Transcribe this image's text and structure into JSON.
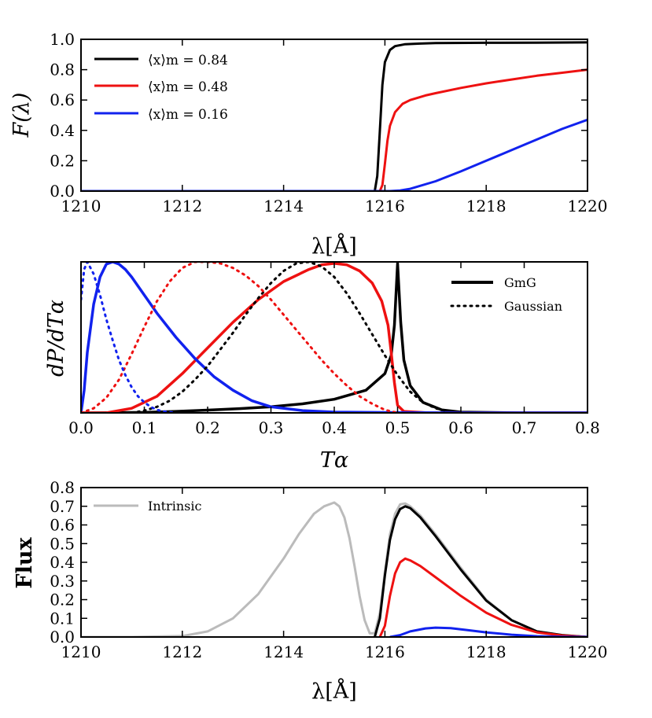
{
  "chart_data": [
    {
      "type": "line",
      "panel": "top",
      "xlabel": "λ[Å]",
      "ylabel": "F(λ)",
      "xlim": [
        1210,
        1220
      ],
      "ylim": [
        0.0,
        1.0
      ],
      "xticks": [
        "1210",
        "1212",
        "1214",
        "1216",
        "1218",
        "1220"
      ],
      "yticks": [
        "0.0",
        "0.2",
        "0.4",
        "0.6",
        "0.8",
        "1.0"
      ],
      "legend": "top-left",
      "series": [
        {
          "name": "⟨x⟩m = 0.84",
          "color": "#000000",
          "x": [
            1210,
            1215.8,
            1215.85,
            1215.9,
            1215.95,
            1216.0,
            1216.1,
            1216.2,
            1216.4,
            1216.7,
            1217.0,
            1218.0,
            1219.0,
            1220.0
          ],
          "y": [
            0.0,
            0.0,
            0.1,
            0.4,
            0.7,
            0.85,
            0.93,
            0.955,
            0.968,
            0.972,
            0.975,
            0.977,
            0.978,
            0.98
          ]
        },
        {
          "name": "⟨x⟩m = 0.48",
          "color": "#ee1111",
          "x": [
            1210,
            1215.9,
            1215.95,
            1216.0,
            1216.05,
            1216.1,
            1216.2,
            1216.35,
            1216.5,
            1216.8,
            1217.0,
            1217.5,
            1218.0,
            1218.5,
            1219.0,
            1219.5,
            1220.0
          ],
          "y": [
            0.0,
            0.0,
            0.04,
            0.18,
            0.33,
            0.43,
            0.52,
            0.575,
            0.6,
            0.63,
            0.645,
            0.68,
            0.71,
            0.735,
            0.76,
            0.78,
            0.8
          ]
        },
        {
          "name": "⟨x⟩m = 0.16",
          "color": "#1122ee",
          "x": [
            1210,
            1216.1,
            1216.3,
            1216.5,
            1217.0,
            1217.5,
            1218.0,
            1218.5,
            1219.0,
            1219.5,
            1220.0
          ],
          "y": [
            0.0,
            0.0,
            0.004,
            0.015,
            0.065,
            0.13,
            0.2,
            0.27,
            0.34,
            0.41,
            0.47
          ]
        }
      ]
    },
    {
      "type": "line",
      "panel": "middle",
      "xlabel": "Tα",
      "ylabel": "dP/dTα",
      "xlim": [
        0.0,
        0.8
      ],
      "ylim": [
        0.0,
        1.0
      ],
      "xticks": [
        "0.0",
        "0.1",
        "0.2",
        "0.3",
        "0.4",
        "0.5",
        "0.6",
        "0.7",
        "0.8"
      ],
      "yticks": [],
      "legend": "top-right",
      "legend_items": [
        {
          "label": "GmG",
          "style": "solid"
        },
        {
          "label": "Gaussian",
          "style": "dotted"
        }
      ],
      "series": [
        {
          "name": "GmG black",
          "style": "solid",
          "color": "#000000",
          "x": [
            0.0,
            0.1,
            0.15,
            0.2,
            0.25,
            0.3,
            0.35,
            0.4,
            0.45,
            0.48,
            0.49,
            0.495,
            0.5,
            0.505,
            0.51,
            0.52,
            0.54,
            0.57,
            0.6,
            0.7,
            0.8
          ],
          "y": [
            0.0,
            0.003,
            0.01,
            0.018,
            0.028,
            0.04,
            0.06,
            0.09,
            0.15,
            0.26,
            0.38,
            0.58,
            0.99,
            0.6,
            0.35,
            0.18,
            0.07,
            0.02,
            0.005,
            0.0,
            0.0
          ]
        },
        {
          "name": "GmG red",
          "style": "solid",
          "color": "#ee1111",
          "x": [
            0.0,
            0.04,
            0.08,
            0.12,
            0.16,
            0.2,
            0.24,
            0.28,
            0.32,
            0.36,
            0.38,
            0.4,
            0.42,
            0.44,
            0.46,
            0.475,
            0.485,
            0.49,
            0.495,
            0.5,
            0.51,
            0.55,
            0.8
          ],
          "y": [
            0.0,
            0.0,
            0.03,
            0.11,
            0.26,
            0.43,
            0.6,
            0.75,
            0.87,
            0.95,
            0.98,
            0.99,
            0.98,
            0.94,
            0.86,
            0.74,
            0.58,
            0.4,
            0.2,
            0.05,
            0.01,
            0.0,
            0.0
          ]
        },
        {
          "name": "GmG blue",
          "style": "solid",
          "color": "#1122ee",
          "x": [
            0.0,
            0.005,
            0.01,
            0.02,
            0.03,
            0.04,
            0.05,
            0.06,
            0.07,
            0.08,
            0.1,
            0.12,
            0.15,
            0.18,
            0.21,
            0.24,
            0.27,
            0.3,
            0.35,
            0.4,
            0.5,
            0.6,
            0.8
          ],
          "y": [
            0.0,
            0.15,
            0.4,
            0.72,
            0.9,
            0.985,
            1.0,
            0.985,
            0.95,
            0.9,
            0.78,
            0.66,
            0.5,
            0.36,
            0.24,
            0.15,
            0.08,
            0.04,
            0.015,
            0.005,
            0.002,
            0.0,
            0.0
          ]
        },
        {
          "name": "Gaussian black",
          "style": "dotted",
          "color": "#000000",
          "x": [
            0.08,
            0.1,
            0.12,
            0.14,
            0.16,
            0.18,
            0.2,
            0.22,
            0.24,
            0.26,
            0.28,
            0.3,
            0.32,
            0.34,
            0.36,
            0.38,
            0.4,
            0.42,
            0.44,
            0.46,
            0.48,
            0.5,
            0.52,
            0.54,
            0.56,
            0.58
          ],
          "y": [
            0.0,
            0.015,
            0.04,
            0.08,
            0.14,
            0.22,
            0.31,
            0.42,
            0.53,
            0.65,
            0.76,
            0.86,
            0.94,
            0.99,
            1.0,
            0.97,
            0.9,
            0.79,
            0.66,
            0.52,
            0.38,
            0.25,
            0.14,
            0.07,
            0.03,
            0.01
          ]
        },
        {
          "name": "Gaussian red",
          "style": "dotted",
          "color": "#ee1111",
          "x": [
            0.0,
            0.02,
            0.04,
            0.06,
            0.08,
            0.1,
            0.12,
            0.14,
            0.16,
            0.18,
            0.2,
            0.22,
            0.24,
            0.26,
            0.28,
            0.3,
            0.32,
            0.34,
            0.36,
            0.38,
            0.4,
            0.42,
            0.44,
            0.46,
            0.48,
            0.5
          ],
          "y": [
            0.0,
            0.03,
            0.1,
            0.22,
            0.39,
            0.57,
            0.74,
            0.87,
            0.96,
            1.0,
            1.0,
            0.99,
            0.96,
            0.91,
            0.84,
            0.75,
            0.65,
            0.55,
            0.45,
            0.35,
            0.26,
            0.18,
            0.11,
            0.06,
            0.02,
            0.0
          ]
        },
        {
          "name": "Gaussian blue",
          "style": "dotted",
          "color": "#1122ee",
          "x": [
            0.0,
            0.005,
            0.01,
            0.02,
            0.03,
            0.04,
            0.05,
            0.06,
            0.07,
            0.08,
            0.09,
            0.1,
            0.11,
            0.12,
            0.13,
            0.14,
            0.15
          ],
          "y": [
            0.75,
            0.95,
            1.0,
            0.92,
            0.78,
            0.62,
            0.48,
            0.35,
            0.25,
            0.17,
            0.11,
            0.07,
            0.04,
            0.02,
            0.01,
            0.005,
            0.0
          ]
        }
      ]
    },
    {
      "type": "line",
      "panel": "bottom",
      "xlabel": "λ[Å]",
      "ylabel": "Flux",
      "xlim": [
        1210,
        1220
      ],
      "ylim": [
        0.0,
        0.8
      ],
      "xticks": [
        "1210",
        "1212",
        "1214",
        "1216",
        "1218",
        "1220"
      ],
      "yticks": [
        "0.0",
        "0.1",
        "0.2",
        "0.3",
        "0.4",
        "0.5",
        "0.6",
        "0.7",
        "0.8"
      ],
      "legend": "top-left",
      "legend_items": [
        {
          "label": "Intrinsic",
          "color": "#bbbbbb"
        }
      ],
      "series": [
        {
          "name": "Intrinsic",
          "color": "#bbbbbb",
          "x": [
            1210,
            1211,
            1212,
            1212.5,
            1213,
            1213.5,
            1214,
            1214.3,
            1214.6,
            1214.8,
            1215.0,
            1215.1,
            1215.2,
            1215.3,
            1215.4,
            1215.5,
            1215.6,
            1215.7,
            1215.8,
            1215.9,
            1216.0,
            1216.1,
            1216.2,
            1216.3,
            1216.4,
            1216.5,
            1216.7,
            1217.0,
            1217.5,
            1218.0,
            1218.5,
            1219.0,
            1219.5,
            1220.0
          ],
          "y": [
            0.0,
            0.0,
            0.005,
            0.03,
            0.1,
            0.23,
            0.42,
            0.55,
            0.66,
            0.7,
            0.72,
            0.7,
            0.64,
            0.53,
            0.38,
            0.22,
            0.09,
            0.02,
            0.02,
            0.13,
            0.35,
            0.55,
            0.66,
            0.71,
            0.715,
            0.7,
            0.65,
            0.55,
            0.37,
            0.2,
            0.09,
            0.03,
            0.01,
            0.0
          ]
        },
        {
          "name": "⟨x⟩m = 0.84",
          "color": "#000000",
          "x": [
            1215.8,
            1215.9,
            1216.0,
            1216.1,
            1216.2,
            1216.3,
            1216.4,
            1216.5,
            1216.7,
            1217.0,
            1217.5,
            1218.0,
            1218.5,
            1219.0,
            1219.5,
            1220.0
          ],
          "y": [
            0.0,
            0.1,
            0.33,
            0.52,
            0.63,
            0.685,
            0.7,
            0.69,
            0.64,
            0.54,
            0.36,
            0.195,
            0.09,
            0.03,
            0.01,
            0.0
          ]
        },
        {
          "name": "⟨x⟩m = 0.48",
          "color": "#ee1111",
          "x": [
            1215.9,
            1216.0,
            1216.1,
            1216.2,
            1216.3,
            1216.4,
            1216.5,
            1216.7,
            1217.0,
            1217.5,
            1218.0,
            1218.5,
            1219.0,
            1219.5,
            1220.0
          ],
          "y": [
            0.0,
            0.06,
            0.22,
            0.34,
            0.4,
            0.42,
            0.41,
            0.38,
            0.32,
            0.22,
            0.13,
            0.065,
            0.025,
            0.008,
            0.0
          ]
        },
        {
          "name": "⟨x⟩m = 0.16",
          "color": "#1122ee",
          "x": [
            1216.1,
            1216.3,
            1216.5,
            1216.8,
            1217.0,
            1217.3,
            1217.6,
            1218.0,
            1218.5,
            1219.0,
            1219.5,
            1220.0
          ],
          "y": [
            0.0,
            0.01,
            0.03,
            0.046,
            0.05,
            0.047,
            0.038,
            0.025,
            0.012,
            0.004,
            0.001,
            0.0
          ]
        }
      ]
    }
  ]
}
